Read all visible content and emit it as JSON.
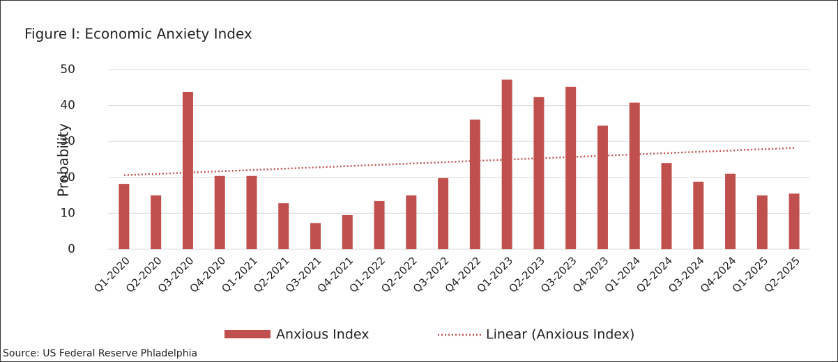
{
  "chart_data": {
    "type": "bar",
    "title": "Figure I: Economic Anxiety Index",
    "y_label": "Probability",
    "source": "Source: US Federal Reserve Phladelphia",
    "categories": [
      "Q1-2020",
      "Q2-2020",
      "Q3-2020",
      "Q4-2020",
      "Q1-2021",
      "Q2-2021",
      "Q3-2021",
      "Q4-2021",
      "Q1-2022",
      "Q2-2022",
      "Q3-2022",
      "Q4-2022",
      "Q1-2023",
      "Q2-2023",
      "Q3-2023",
      "Q4-2023",
      "Q1-2024",
      "Q2-2024",
      "Q3-2024",
      "Q4-2024",
      "Q1-2025",
      "Q2-2025"
    ],
    "series": [
      {
        "name": "Anxious Index",
        "color": "#c0504d",
        "values": [
          18.2,
          15,
          43.8,
          20.4,
          20.4,
          12.8,
          7.3,
          9.5,
          13.4,
          15,
          19.8,
          36.1,
          47.2,
          42.4,
          45.2,
          34.4,
          40.8,
          24,
          18.8,
          21,
          15,
          15.5
        ]
      }
    ],
    "trendline": {
      "name": "Linear (Anxious Index)",
      "color": "#c0504d",
      "values": [
        20.6,
        28.2
      ]
    },
    "ylim": [
      0,
      50
    ],
    "yticks": [
      0,
      10,
      20,
      30,
      40,
      50
    ],
    "grid": true,
    "legend": "bottom"
  }
}
